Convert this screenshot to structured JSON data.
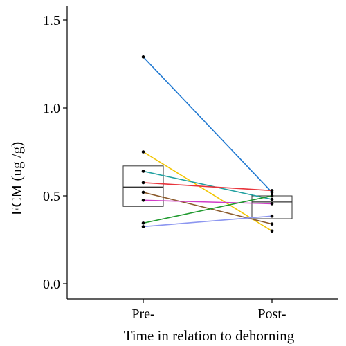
{
  "chart_data": {
    "type": "paired-boxplot",
    "xlabel": "Time in relation to dehorning",
    "ylabel": "FCM (ug /g)",
    "categories": [
      "Pre-",
      "Post-"
    ],
    "ylim": [
      0,
      1.55
    ],
    "yticks": [
      {
        "value": 0.0,
        "label": "0.0"
      },
      {
        "value": 0.5,
        "label": "0.5"
      },
      {
        "value": 1.0,
        "label": "1.0"
      },
      {
        "value": 1.5,
        "label": "1.5"
      }
    ],
    "grid": false,
    "boxes": [
      {
        "category": "Pre-",
        "q1": 0.44,
        "median": 0.55,
        "q3": 0.67
      },
      {
        "category": "Post-",
        "q1": 0.37,
        "median": 0.465,
        "q3": 0.5
      }
    ],
    "pairs": [
      {
        "pre": 1.29,
        "post": 0.52,
        "color": "#1f78d1"
      },
      {
        "pre": 0.75,
        "post": 0.3,
        "color": "#f2c500"
      },
      {
        "pre": 0.64,
        "post": 0.48,
        "color": "#20a0a0"
      },
      {
        "pre": 0.575,
        "post": 0.53,
        "color": "#e8343c"
      },
      {
        "pre": 0.52,
        "post": 0.34,
        "color": "#8b5a2b"
      },
      {
        "pre": 0.475,
        "post": 0.455,
        "color": "#d03cc8"
      },
      {
        "pre": 0.345,
        "post": 0.5,
        "color": "#1f9a2e"
      },
      {
        "pre": 0.325,
        "post": 0.385,
        "color": "#8c96f0"
      }
    ]
  }
}
